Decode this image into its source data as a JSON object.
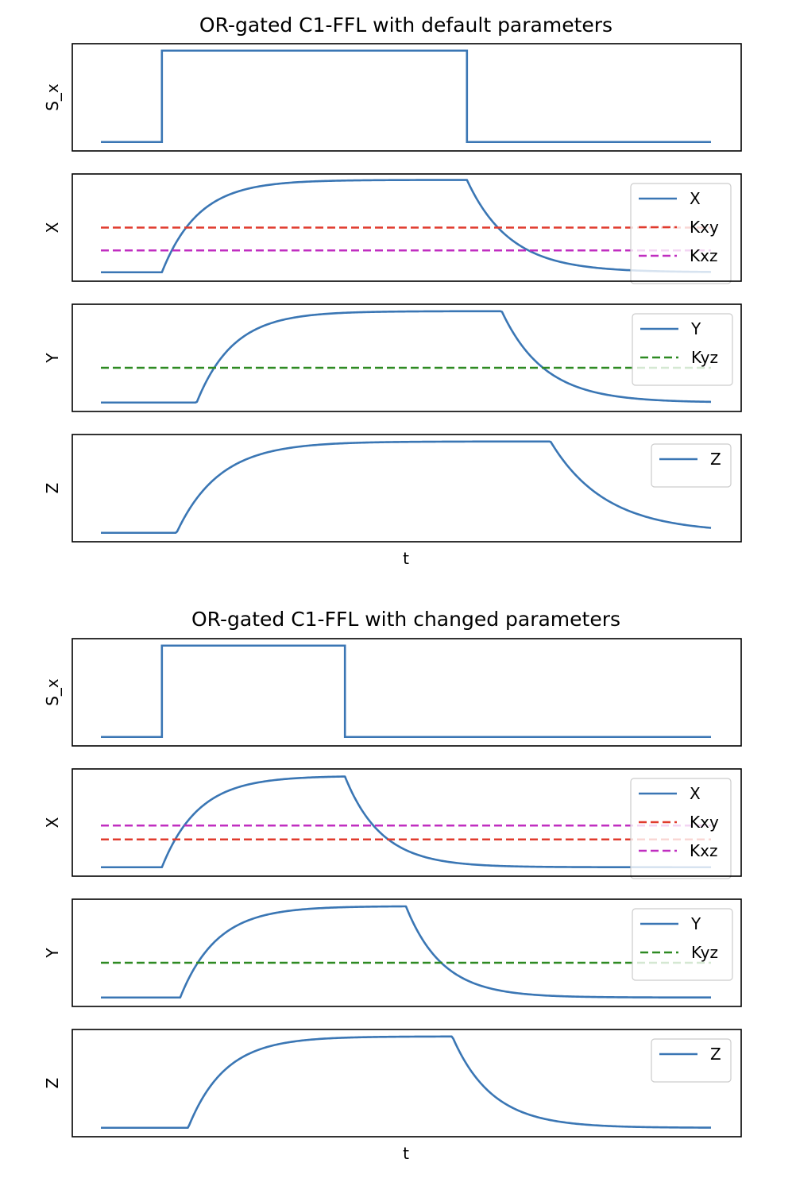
{
  "colors": {
    "signal": "#3a76b4",
    "Kxy": "#e03b2e",
    "Kxz": "#c02ec0",
    "Kyz": "#2e8a22"
  },
  "chart_data": [
    {
      "type": "line",
      "title": "OR-gated C1-FFL with default parameters",
      "xlabel": "t",
      "xlim": [
        0,
        1
      ],
      "panels": [
        {
          "ylabel": "S_x",
          "ylim": [
            0,
            1
          ],
          "series": [
            {
              "kind": "step",
              "color_key": "signal",
              "low": 0.05,
              "high": 0.97,
              "on": 0.1,
              "off": 0.6
            }
          ],
          "legend": []
        },
        {
          "ylabel": "X",
          "ylim": [
            0,
            1
          ],
          "series": [
            {
              "name": "X",
              "kind": "response",
              "color_key": "signal",
              "low": 0.05,
              "high": 0.98,
              "on": 0.1,
              "off": 0.6,
              "tau_rise": 0.06,
              "tau_fall": 0.07
            },
            {
              "name": "Kxy",
              "kind": "hline",
              "color_key": "Kxy",
              "y": 0.5
            },
            {
              "name": "Kxz",
              "kind": "hline",
              "color_key": "Kxz",
              "y": 0.27
            }
          ],
          "legend": [
            "X",
            "Kxy",
            "Kxz"
          ]
        },
        {
          "ylabel": "Y",
          "ylim": [
            0,
            1
          ],
          "series": [
            {
              "name": "Y",
              "kind": "response",
              "color_key": "signal",
              "low": 0.05,
              "high": 0.97,
              "on": 0.157,
              "off": 0.657,
              "tau_rise": 0.06,
              "tau_fall": 0.07
            },
            {
              "name": "Kyz",
              "kind": "hline",
              "color_key": "Kyz",
              "y": 0.4
            }
          ],
          "legend": [
            "Y",
            "Kyz"
          ]
        },
        {
          "ylabel": "Z",
          "ylim": [
            0,
            1
          ],
          "series": [
            {
              "name": "Z",
              "kind": "response",
              "color_key": "signal",
              "low": 0.05,
              "high": 0.97,
              "on": 0.124,
              "off": 0.737,
              "tau_rise": 0.07,
              "tau_fall": 0.09
            }
          ],
          "legend": [
            "Z"
          ]
        }
      ]
    },
    {
      "type": "line",
      "title": "OR-gated C1-FFL with changed parameters",
      "xlabel": "t",
      "xlim": [
        0,
        1
      ],
      "panels": [
        {
          "ylabel": "S_x",
          "ylim": [
            0,
            1
          ],
          "series": [
            {
              "kind": "step",
              "color_key": "signal",
              "low": 0.05,
              "high": 0.97,
              "on": 0.1,
              "off": 0.4
            }
          ],
          "legend": []
        },
        {
          "ylabel": "X",
          "ylim": [
            0,
            1
          ],
          "series": [
            {
              "name": "X",
              "kind": "response",
              "color_key": "signal",
              "low": 0.05,
              "high": 0.97,
              "on": 0.1,
              "off": 0.4,
              "tau_rise": 0.06,
              "tau_fall": 0.06
            },
            {
              "name": "Kxy",
              "kind": "hline",
              "color_key": "Kxy",
              "y": 0.33
            },
            {
              "name": "Kxz",
              "kind": "hline",
              "color_key": "Kxz",
              "y": 0.47
            }
          ],
          "legend": [
            "X",
            "Kxy",
            "Kxz"
          ]
        },
        {
          "ylabel": "Y",
          "ylim": [
            0,
            1
          ],
          "series": [
            {
              "name": "Y",
              "kind": "response",
              "color_key": "signal",
              "low": 0.05,
              "high": 0.97,
              "on": 0.13,
              "off": 0.5,
              "tau_rise": 0.06,
              "tau_fall": 0.06
            },
            {
              "name": "Kyz",
              "kind": "hline",
              "color_key": "Kyz",
              "y": 0.4
            }
          ],
          "legend": [
            "Y",
            "Kyz"
          ]
        },
        {
          "ylabel": "Z",
          "ylim": [
            0,
            1
          ],
          "series": [
            {
              "name": "Z",
              "kind": "response",
              "color_key": "signal",
              "low": 0.05,
              "high": 0.97,
              "on": 0.143,
              "off": 0.576,
              "tau_rise": 0.06,
              "tau_fall": 0.065
            }
          ],
          "legend": [
            "Z"
          ]
        }
      ]
    }
  ]
}
